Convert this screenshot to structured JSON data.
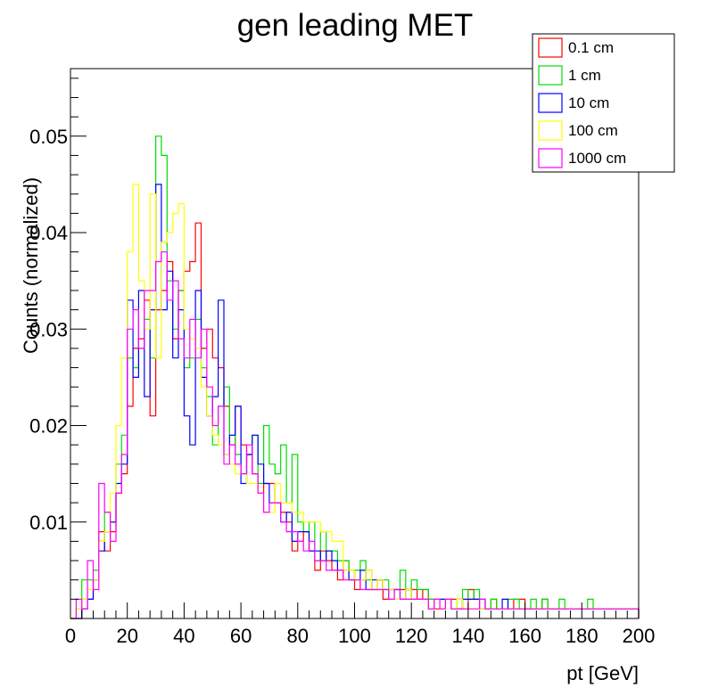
{
  "chart_data": {
    "type": "line",
    "title": "gen leading MET",
    "xlabel": "pt [GeV]",
    "ylabel": "Counts (normalized)",
    "xlim": [
      0,
      200
    ],
    "ylim": [
      0,
      0.057
    ],
    "bin_width": 2,
    "x_ticks": [
      0,
      20,
      40,
      60,
      80,
      100,
      120,
      140,
      160,
      180,
      200
    ],
    "x_tick_labels": [
      "0",
      "20",
      "40",
      "60",
      "80",
      "100",
      "120",
      "140",
      "160",
      "180",
      "200"
    ],
    "y_ticks": [
      0.01,
      0.02,
      0.03,
      0.04,
      0.05
    ],
    "y_tick_labels": [
      "0.01",
      "0.02",
      "0.03",
      "0.04",
      "0.05"
    ],
    "legend_position": "top-right",
    "series": [
      {
        "name": "0.1 cm",
        "color": "#ff0000",
        "values": [
          0,
          0,
          0.002,
          0.002,
          0.004,
          0.009,
          0.007,
          0.009,
          0.013,
          0.015,
          0.022,
          0.028,
          0.029,
          0.033,
          0.021,
          0.032,
          0.034,
          0.037,
          0.029,
          0.034,
          0.036,
          0.037,
          0.041,
          0.028,
          0.03,
          0.027,
          0.026,
          0.022,
          0.018,
          0.022,
          0.018,
          0.017,
          0.015,
          0.013,
          0.014,
          0.014,
          0.012,
          0.011,
          0.01,
          0.007,
          0.008,
          0.009,
          0.007,
          0.005,
          0.007,
          0.006,
          0.005,
          0.004,
          0.006,
          0.005,
          0.003,
          0.004,
          0.005,
          0.003,
          0.004,
          0.002,
          0.003,
          0.003,
          0.003,
          0.003,
          0.003,
          0.002,
          0.003,
          0.002,
          0.001,
          0.001,
          0.002,
          0.002,
          0.002,
          0.001,
          0.003,
          0.002,
          0.002,
          0.001,
          0.002,
          0.001,
          0.001,
          0.001,
          0.002,
          0.002,
          0.001,
          0.001,
          0.001,
          0.002,
          0.001,
          0.001,
          0.001,
          0.001,
          0.001,
          0.001,
          0.001,
          0.001,
          0.001,
          0.001,
          0.001,
          0.001,
          0.001,
          0.001,
          0.001,
          0.001
        ]
      },
      {
        "name": "1 cm",
        "color": "#00dd00",
        "values": [
          0,
          0.001,
          0.004,
          0.004,
          0.005,
          0.008,
          0.011,
          0.01,
          0.016,
          0.019,
          0.027,
          0.026,
          0.028,
          0.031,
          0.027,
          0.05,
          0.048,
          0.035,
          0.03,
          0.034,
          0.026,
          0.027,
          0.031,
          0.026,
          0.023,
          0.018,
          0.022,
          0.024,
          0.019,
          0.017,
          0.015,
          0.017,
          0.019,
          0.014,
          0.02,
          0.016,
          0.015,
          0.018,
          0.012,
          0.017,
          0.01,
          0.009,
          0.01,
          0.006,
          0.009,
          0.007,
          0.007,
          0.006,
          0.006,
          0.004,
          0.005,
          0.006,
          0.004,
          0.003,
          0.003,
          0.004,
          0.002,
          0.003,
          0.005,
          0.002,
          0.004,
          0.003,
          0.003,
          0.002,
          0.002,
          0.002,
          0.002,
          0.001,
          0.002,
          0.003,
          0.002,
          0.003,
          0.002,
          0.001,
          0.002,
          0.001,
          0.001,
          0.002,
          0.002,
          0.001,
          0.001,
          0.002,
          0.001,
          0.002,
          0.001,
          0.001,
          0.002,
          0.001,
          0.001,
          0.001,
          0.001,
          0.002,
          0.001,
          0.001,
          0.001,
          0.001,
          0.001,
          0.001,
          0.001,
          0.001
        ]
      },
      {
        "name": "10 cm",
        "color": "#0000ff",
        "values": [
          0,
          0,
          0.001,
          0.002,
          0.004,
          0.007,
          0.009,
          0.01,
          0.014,
          0.016,
          0.033,
          0.025,
          0.034,
          0.023,
          0.032,
          0.045,
          0.032,
          0.036,
          0.027,
          0.032,
          0.021,
          0.018,
          0.034,
          0.025,
          0.021,
          0.023,
          0.033,
          0.017,
          0.019,
          0.022,
          0.014,
          0.017,
          0.019,
          0.016,
          0.014,
          0.012,
          0.012,
          0.01,
          0.011,
          0.008,
          0.009,
          0.009,
          0.007,
          0.007,
          0.006,
          0.007,
          0.006,
          0.005,
          0.005,
          0.004,
          0.004,
          0.005,
          0.003,
          0.004,
          0.004,
          0.003,
          0.003,
          0.003,
          0.002,
          0.003,
          0.002,
          0.002,
          0.002,
          0.001,
          0.002,
          0.002,
          0.002,
          0.001,
          0.001,
          0.002,
          0.002,
          0.002,
          0.001,
          0.001,
          0.001,
          0.001,
          0.002,
          0.001,
          0.001,
          0.001,
          0.001,
          0.001,
          0.001,
          0.001,
          0.001,
          0.001,
          0.001,
          0.001,
          0.001,
          0.001,
          0.001,
          0.001,
          0.001,
          0.001,
          0.001,
          0.001,
          0.001,
          0.001,
          0.001,
          0.001
        ]
      },
      {
        "name": "100 cm",
        "color": "#ffff00",
        "values": [
          0,
          0.001,
          0.002,
          0.003,
          0.004,
          0.008,
          0.009,
          0.013,
          0.02,
          0.027,
          0.038,
          0.045,
          0.035,
          0.03,
          0.044,
          0.027,
          0.039,
          0.04,
          0.042,
          0.043,
          0.03,
          0.029,
          0.028,
          0.024,
          0.021,
          0.019,
          0.018,
          0.017,
          0.016,
          0.015,
          0.015,
          0.014,
          0.014,
          0.013,
          0.011,
          0.011,
          0.014,
          0.012,
          0.012,
          0.011,
          0.011,
          0.01,
          0.01,
          0.01,
          0.009,
          0.009,
          0.008,
          0.008,
          0.005,
          0.005,
          0.004,
          0.004,
          0.005,
          0.003,
          0.004,
          0.003,
          0.003,
          0.002,
          0.002,
          0.003,
          0.002,
          0.002,
          0.002,
          0.001,
          0.002,
          0.001,
          0.002,
          0.001,
          0.002,
          0.001,
          0.001,
          0.001,
          0.001,
          0.001,
          0.001,
          0.001,
          0.001,
          0.001,
          0.001,
          0.001,
          0.001,
          0.001,
          0.001,
          0.001,
          0.001,
          0.001,
          0.001,
          0.001,
          0.001,
          0.001,
          0.001,
          0.001,
          0.001,
          0.001,
          0.001,
          0.001,
          0.001,
          0.001,
          0.001,
          0.001
        ]
      },
      {
        "name": "1000 cm",
        "color": "#ff00ff",
        "values": [
          0,
          0.002,
          0.001,
          0.006,
          0.003,
          0.014,
          0.011,
          0.008,
          0.013,
          0.017,
          0.03,
          0.032,
          0.028,
          0.034,
          0.034,
          0.037,
          0.038,
          0.033,
          0.035,
          0.029,
          0.027,
          0.031,
          0.027,
          0.03,
          0.024,
          0.02,
          0.022,
          0.016,
          0.018,
          0.016,
          0.015,
          0.018,
          0.015,
          0.013,
          0.011,
          0.012,
          0.012,
          0.01,
          0.009,
          0.009,
          0.008,
          0.007,
          0.008,
          0.006,
          0.006,
          0.005,
          0.005,
          0.005,
          0.004,
          0.004,
          0.004,
          0.003,
          0.003,
          0.003,
          0.003,
          0.003,
          0.002,
          0.003,
          0.002,
          0.002,
          0.002,
          0.002,
          0.002,
          0.001,
          0.002,
          0.001,
          0.002,
          0.001,
          0.001,
          0.001,
          0.001,
          0.001,
          0.002,
          0.001,
          0.001,
          0.001,
          0.001,
          0.001,
          0.001,
          0.001,
          0.001,
          0.001,
          0.001,
          0.001,
          0.001,
          0.001,
          0.001,
          0.001,
          0.001,
          0.001,
          0.001,
          0.001,
          0.001,
          0.001,
          0.001,
          0.001,
          0.001,
          0.001,
          0.001,
          0.001
        ]
      }
    ]
  }
}
